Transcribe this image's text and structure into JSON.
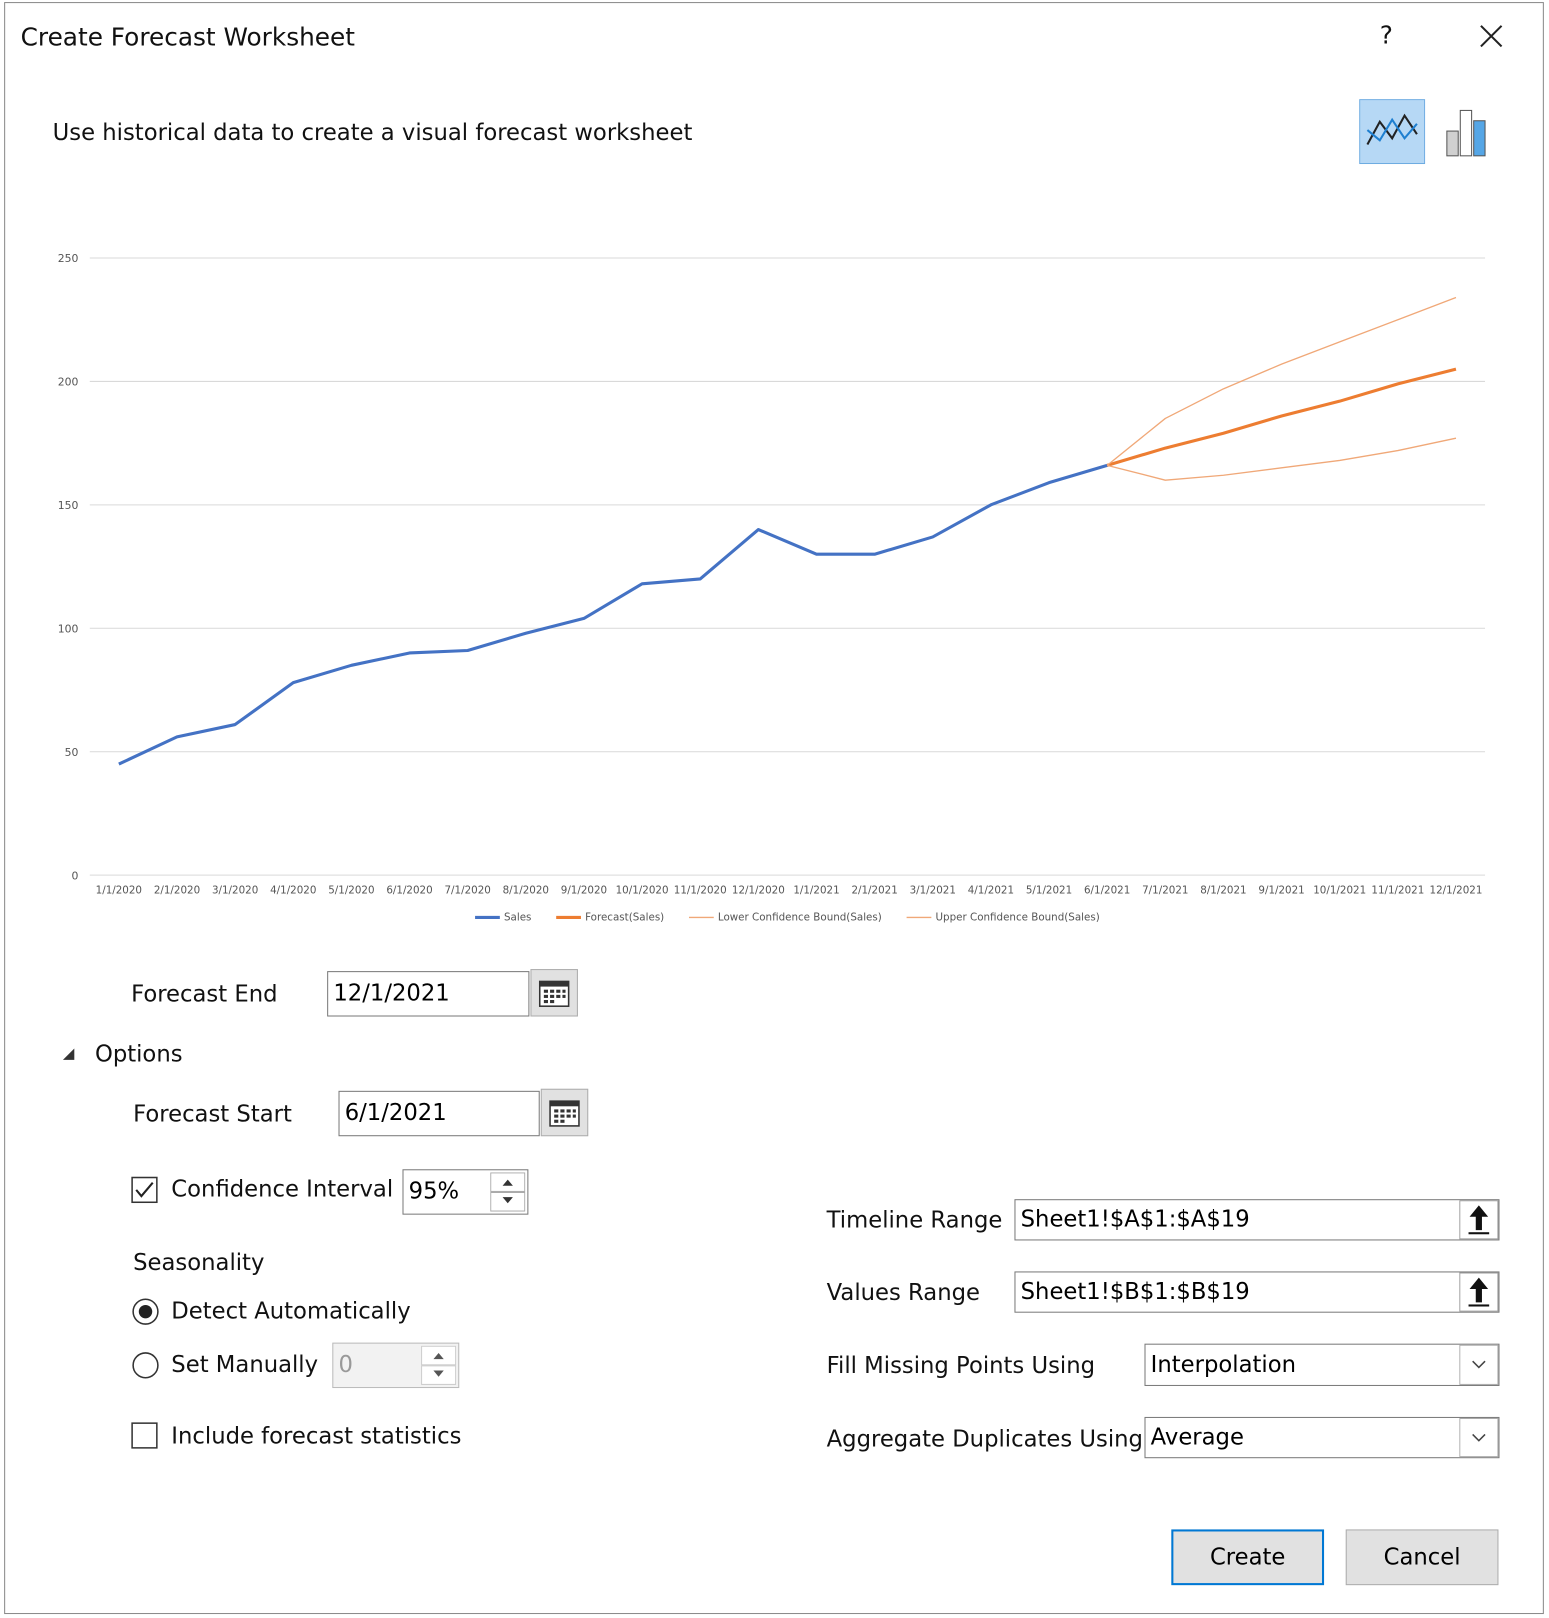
{
  "dialog": {
    "title": "Create Forecast Worksheet",
    "help": "?",
    "subtitle": "Use historical data to create a visual forecast worksheet",
    "forecast_end": {
      "label": "Forecast End",
      "value": "12/1/2021"
    },
    "options": {
      "label": "Options",
      "forecast_start": {
        "label": "Forecast Start",
        "value": "6/1/2021"
      },
      "confidence_interval": {
        "label": "Confidence Interval",
        "value": "95%",
        "checked": true
      },
      "seasonality": {
        "label": "Seasonality",
        "detect": "Detect Automatically",
        "manual": "Set Manually",
        "manual_value": "0"
      },
      "include_statistics": {
        "label": "Include forecast statistics",
        "checked": false
      },
      "timeline_range": {
        "label": "Timeline Range",
        "value": "Sheet1!$A$1:$A$19"
      },
      "values_range": {
        "label": "Values Range",
        "value": "Sheet1!$B$1:$B$19"
      },
      "fill_missing": {
        "label": "Fill Missing Points Using",
        "value": "Interpolation"
      },
      "aggregate_duplicates": {
        "label": "Aggregate Duplicates Using",
        "value": "Average"
      }
    },
    "buttons": {
      "create": "Create",
      "cancel": "Cancel"
    }
  },
  "chart_data": {
    "type": "line",
    "categories": [
      "1/1/2020",
      "2/1/2020",
      "3/1/2020",
      "4/1/2020",
      "5/1/2020",
      "6/1/2020",
      "7/1/2020",
      "8/1/2020",
      "9/1/2020",
      "10/1/2020",
      "11/1/2020",
      "12/1/2020",
      "1/1/2021",
      "2/1/2021",
      "3/1/2021",
      "4/1/2021",
      "5/1/2021",
      "6/1/2021",
      "7/1/2021",
      "8/1/2021",
      "9/1/2021",
      "10/1/2021",
      "11/1/2021",
      "12/1/2021"
    ],
    "series": [
      {
        "name": "Sales",
        "color": "#4472c4",
        "values": [
          45,
          56,
          61,
          78,
          85,
          90,
          91,
          98,
          104,
          118,
          120,
          140,
          130,
          130,
          137,
          150,
          159,
          166,
          null,
          null,
          null,
          null,
          null,
          null
        ]
      },
      {
        "name": "Forecast(Sales)",
        "color": "#ed7d31",
        "values": [
          null,
          null,
          null,
          null,
          null,
          null,
          null,
          null,
          null,
          null,
          null,
          null,
          null,
          null,
          null,
          null,
          null,
          166,
          173,
          179,
          186,
          192,
          199,
          205
        ]
      },
      {
        "name": "Lower Confidence Bound(Sales)",
        "color": "#f0a878",
        "values": [
          null,
          null,
          null,
          null,
          null,
          null,
          null,
          null,
          null,
          null,
          null,
          null,
          null,
          null,
          null,
          null,
          null,
          166,
          160,
          162,
          165,
          168,
          172,
          177
        ]
      },
      {
        "name": "Upper Confidence Bound(Sales)",
        "color": "#f0a878",
        "values": [
          null,
          null,
          null,
          null,
          null,
          null,
          null,
          null,
          null,
          null,
          null,
          null,
          null,
          null,
          null,
          null,
          null,
          166,
          185,
          197,
          207,
          216,
          225,
          234
        ]
      }
    ],
    "ylim": [
      0,
      250
    ],
    "yticks": [
      0,
      50,
      100,
      150,
      200,
      250
    ],
    "grid": true,
    "legend": "bottom"
  }
}
